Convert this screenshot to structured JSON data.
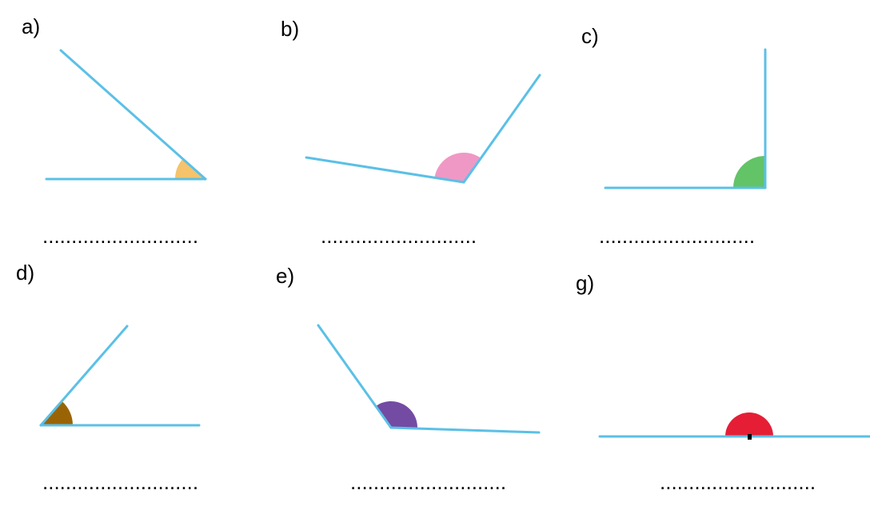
{
  "items": [
    {
      "label": "a)",
      "answer": "..........................."
    },
    {
      "label": "b)",
      "answer": "..........................."
    },
    {
      "label": "c)",
      "answer": "..........................."
    },
    {
      "label": "d)",
      "answer": "..........................."
    },
    {
      "label": "e)",
      "answer": "..........................."
    },
    {
      "label": "g)",
      "answer": "..........................."
    }
  ]
}
